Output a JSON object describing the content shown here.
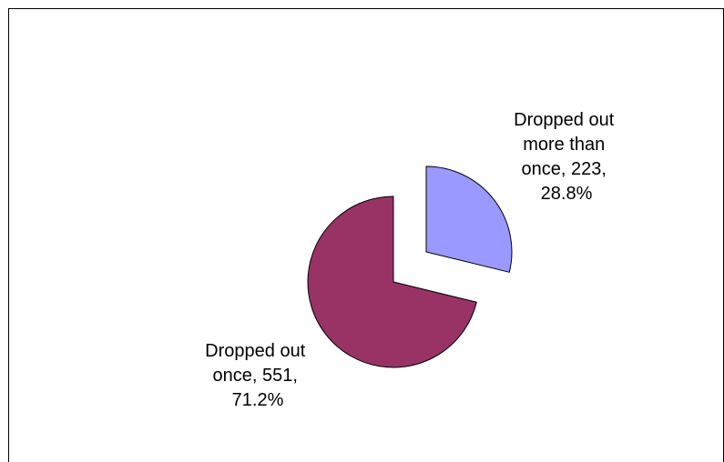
{
  "chart_data": {
    "type": "pie",
    "title": "",
    "exploded": true,
    "slices": [
      {
        "label": "Dropped out once",
        "value": 551,
        "percent": "71.2%",
        "color": "#993366",
        "label_lines": [
          "Dropped out",
          "once, 551,",
          "71.2%"
        ]
      },
      {
        "label": "Dropped out more than once",
        "value": 223,
        "percent": "28.8%",
        "color": "#9999ff",
        "label_lines": [
          "Dropped out",
          "more than",
          "once, 223,",
          "28.8%"
        ]
      }
    ]
  }
}
